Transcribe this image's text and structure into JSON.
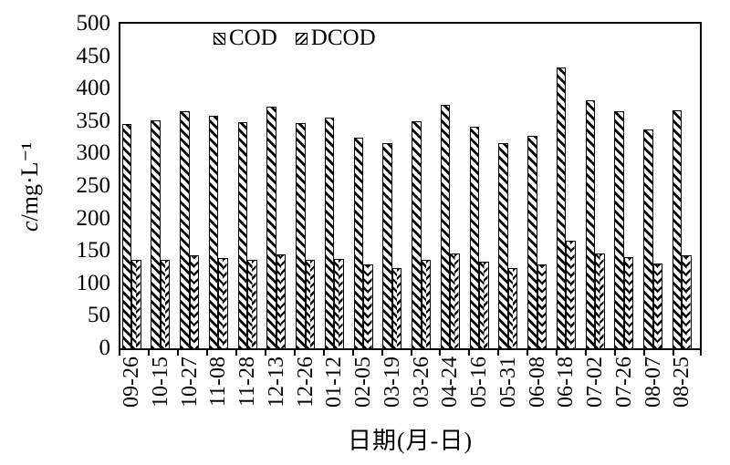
{
  "figure": {
    "background": "#ffffff",
    "ink_color": "#000000"
  },
  "chart_data": {
    "type": "bar",
    "title": "",
    "xlabel": "日期(月-日)",
    "ylabel": "c/mg·L⁻¹",
    "ylabel_var": "c",
    "ylabel_rest": "/mg·L⁻¹",
    "ylim": [
      0,
      500
    ],
    "ytick_step": 50,
    "yticks": [
      500,
      450,
      400,
      350,
      300,
      250,
      200,
      150,
      100,
      50,
      0
    ],
    "grid": false,
    "legend_position": "top-center",
    "legend_entries": [
      "COD",
      "DCOD"
    ],
    "categories": [
      "09-26",
      "10-15",
      "10-27",
      "11-08",
      "11-28",
      "12-13",
      "12-26",
      "01-12",
      "02-05",
      "03-19",
      "03-26",
      "04-24",
      "05-16",
      "05-31",
      "06-08",
      "06-18",
      "07-02",
      "07-26",
      "08-07",
      "08-25"
    ],
    "series": [
      {
        "name": "COD",
        "hatch": "diagonal-down",
        "values": [
          345,
          351,
          365,
          358,
          348,
          372,
          347,
          355,
          325,
          316,
          350,
          375,
          342,
          316,
          327,
          433,
          382,
          365,
          337,
          367
        ]
      },
      {
        "name": "DCOD",
        "hatch": "chevron",
        "values": [
          136,
          136,
          143,
          139,
          136,
          145,
          136,
          138,
          129,
          123,
          136,
          146,
          133,
          123,
          129,
          166,
          146,
          141,
          130,
          143
        ]
      }
    ]
  }
}
